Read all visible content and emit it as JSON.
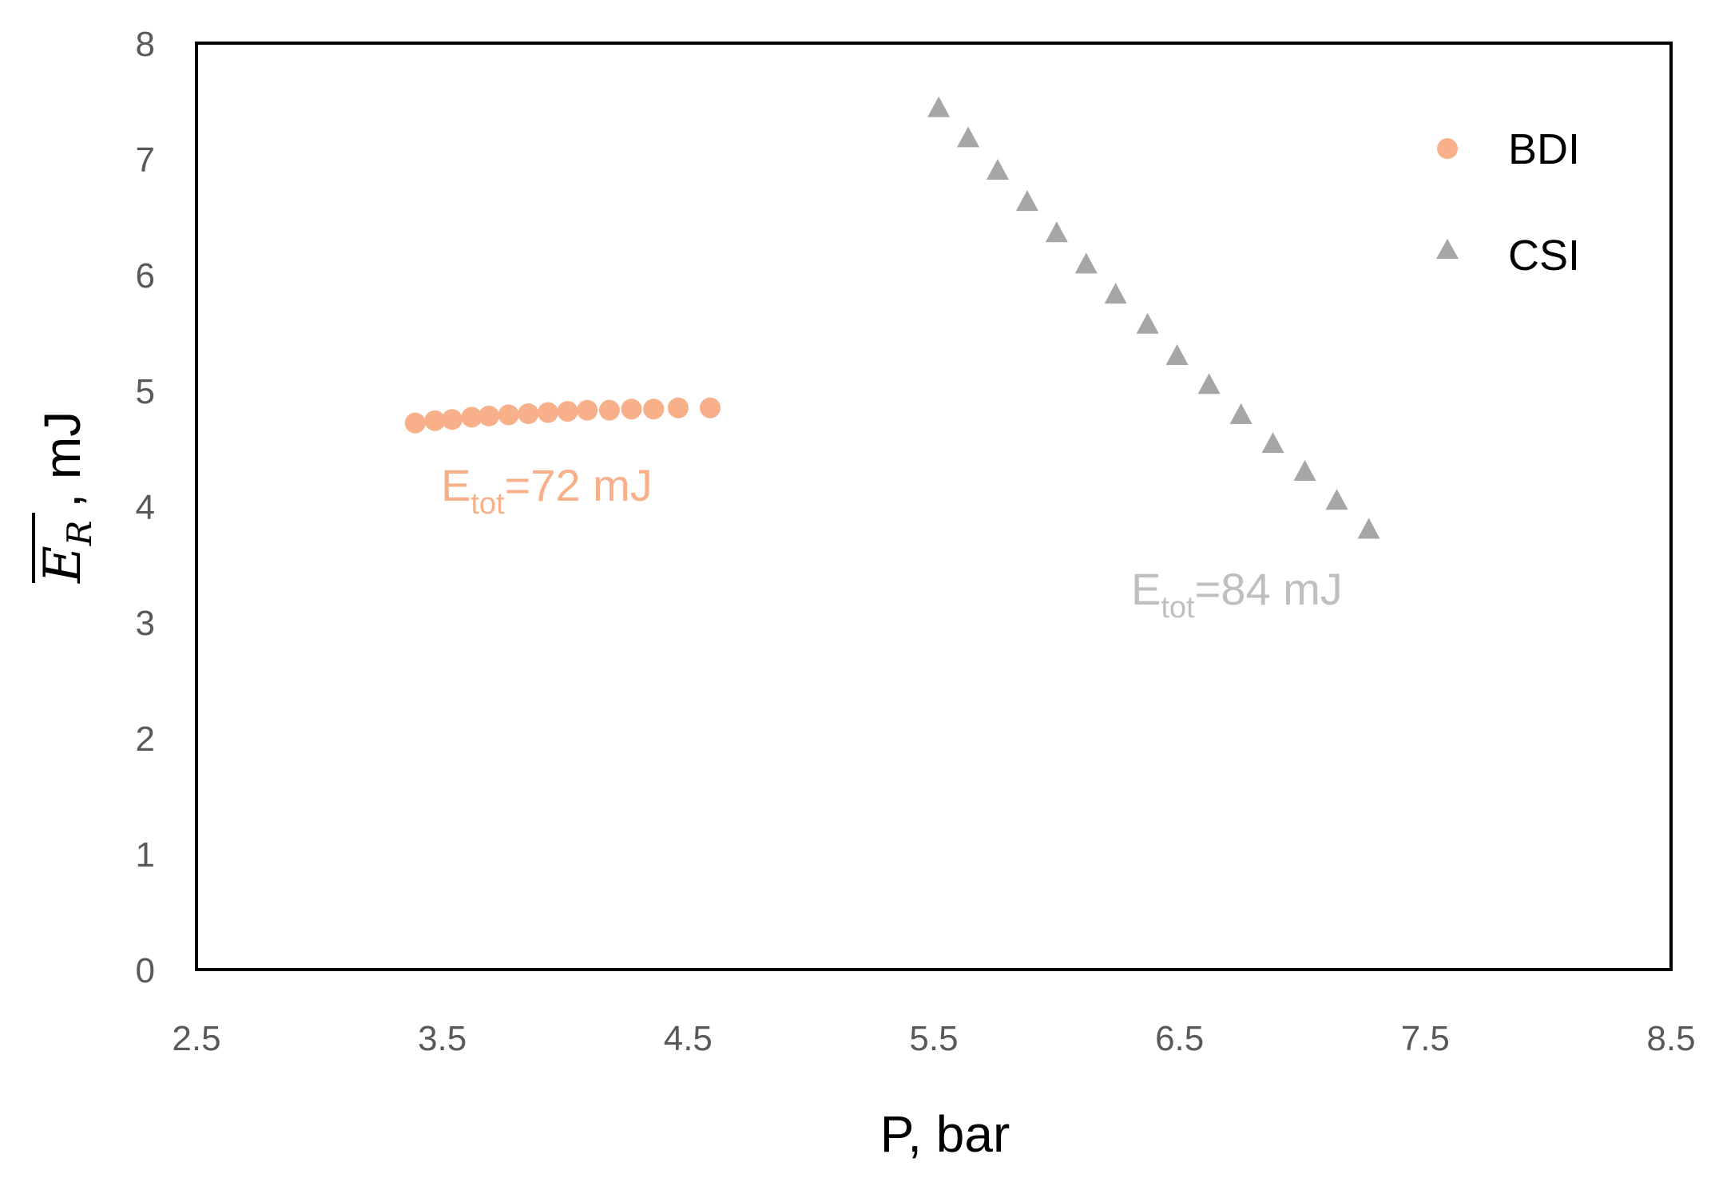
{
  "chart_data": {
    "type": "scatter",
    "xlim": [
      2.5,
      8.5
    ],
    "ylim": [
      0,
      8
    ],
    "x_ticks": [
      "2.5",
      "3.5",
      "4.5",
      "5.5",
      "6.5",
      "7.5",
      "8.5"
    ],
    "y_ticks": [
      "0",
      "1",
      "2",
      "3",
      "4",
      "5",
      "6",
      "7",
      "8"
    ],
    "xlabel": "P, bar",
    "ylabel": {
      "symbol": "E",
      "subscript": "R",
      "rest": ", mJ"
    },
    "grid": false,
    "legend_position": "top-right",
    "series": [
      {
        "name": "BDI",
        "marker": "circle",
        "color": "#F7B08A",
        "x": [
          3.39,
          3.47,
          3.54,
          3.62,
          3.69,
          3.77,
          3.85,
          3.93,
          4.01,
          4.09,
          4.18,
          4.27,
          4.36,
          4.46,
          4.59
        ],
        "y": [
          4.72,
          4.74,
          4.75,
          4.77,
          4.78,
          4.79,
          4.8,
          4.81,
          4.82,
          4.83,
          4.83,
          4.84,
          4.84,
          4.85,
          4.85
        ]
      },
      {
        "name": "CSI",
        "marker": "triangle",
        "color": "#A6A6A6",
        "x": [
          5.52,
          5.64,
          5.76,
          5.88,
          6.0,
          6.12,
          6.24,
          6.37,
          6.49,
          6.62,
          6.75,
          6.88,
          7.01,
          7.14,
          7.27
        ],
        "y": [
          7.43,
          7.17,
          6.89,
          6.62,
          6.35,
          6.08,
          5.82,
          5.56,
          5.29,
          5.04,
          4.78,
          4.53,
          4.29,
          4.04,
          3.79
        ]
      }
    ],
    "annotations": [
      {
        "base": "E",
        "sub": "tot",
        "rest": "=72 mJ",
        "color": "#F7B08A"
      },
      {
        "base": "E",
        "sub": "tot",
        "rest": "=84 mJ",
        "color": "#BFBFBF"
      }
    ]
  }
}
